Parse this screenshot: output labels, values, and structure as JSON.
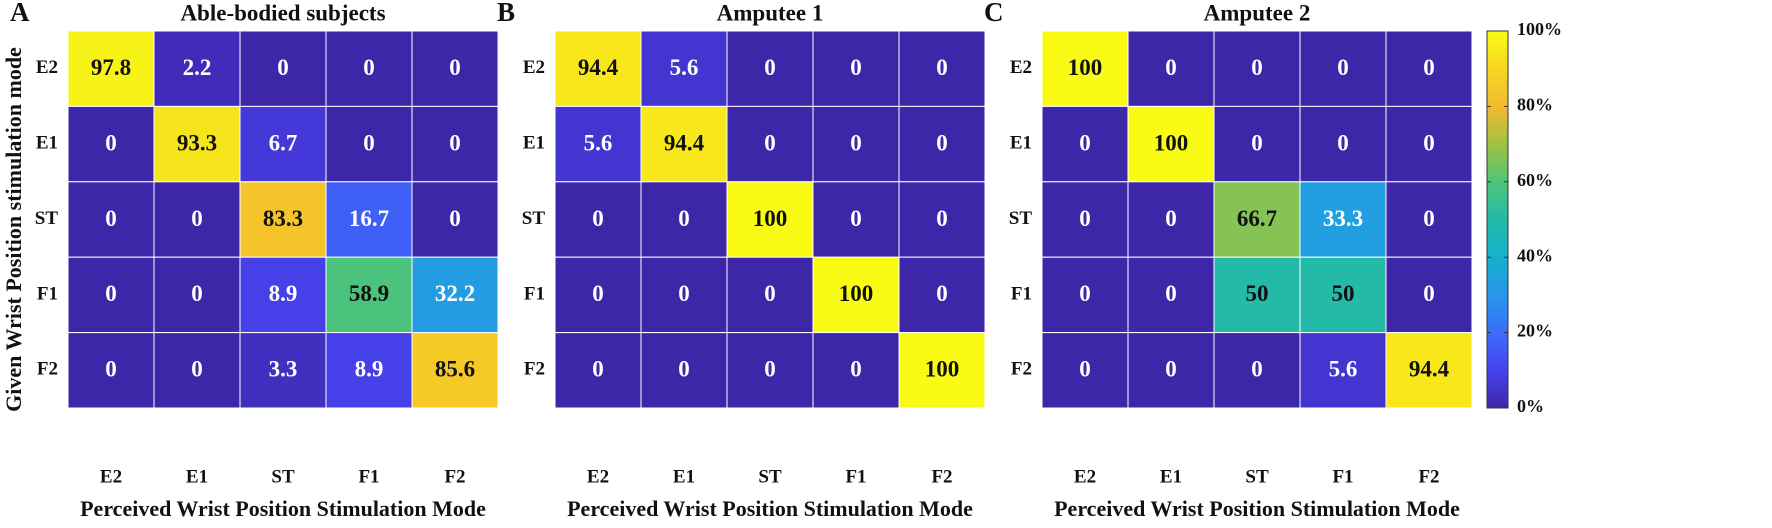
{
  "chart_data": [
    {
      "type": "heatmap",
      "panel_label": "A",
      "title": "Able-bodied subjects",
      "x_label": "Perceived Wrist Position Stimulation Mode",
      "y_label": "Given Wrist Position stimulation mode",
      "x_categories": [
        "E2",
        "E1",
        "ST",
        "F1",
        "F2"
      ],
      "y_categories": [
        "E2",
        "E1",
        "ST",
        "F1",
        "F2"
      ],
      "values": [
        [
          97.8,
          2.2,
          0,
          0,
          0
        ],
        [
          0,
          93.3,
          6.7,
          0,
          0
        ],
        [
          0,
          0,
          83.3,
          16.7,
          0
        ],
        [
          0,
          0,
          8.9,
          58.9,
          32.2
        ],
        [
          0,
          0,
          3.3,
          8.9,
          85.6
        ]
      ],
      "clim": [
        0,
        100
      ]
    },
    {
      "type": "heatmap",
      "panel_label": "B",
      "title": "Amputee 1",
      "x_label": "Perceived Wrist Position Stimulation Mode",
      "x_categories": [
        "E2",
        "E1",
        "ST",
        "F1",
        "F2"
      ],
      "y_categories": [
        "E2",
        "E1",
        "ST",
        "F1",
        "F2"
      ],
      "values": [
        [
          94.4,
          5.6,
          0,
          0,
          0
        ],
        [
          5.6,
          94.4,
          0,
          0,
          0
        ],
        [
          0,
          0,
          100,
          0,
          0
        ],
        [
          0,
          0,
          0,
          100,
          0
        ],
        [
          0,
          0,
          0,
          0,
          100
        ]
      ],
      "clim": [
        0,
        100
      ]
    },
    {
      "type": "heatmap",
      "panel_label": "C",
      "title": "Amputee 2",
      "x_label": "Perceived Wrist Position Stimulation Mode",
      "x_categories": [
        "E2",
        "E1",
        "ST",
        "F1",
        "F2"
      ],
      "y_categories": [
        "E2",
        "E1",
        "ST",
        "F1",
        "F2"
      ],
      "values": [
        [
          100,
          0,
          0,
          0,
          0
        ],
        [
          0,
          100,
          0,
          0,
          0
        ],
        [
          0,
          0,
          66.7,
          33.3,
          0
        ],
        [
          0,
          0,
          50,
          50,
          0
        ],
        [
          0,
          0,
          0,
          5.6,
          94.4
        ]
      ],
      "clim": [
        0,
        100
      ],
      "colorbar": {
        "ticks": [
          {
            "value": 0,
            "label": "0%"
          },
          {
            "value": 20,
            "label": "20%"
          },
          {
            "value": 40,
            "label": "40%"
          },
          {
            "value": 60,
            "label": "60%"
          },
          {
            "value": 80,
            "label": "80%"
          },
          {
            "value": 100,
            "label": "100%"
          }
        ]
      }
    }
  ]
}
